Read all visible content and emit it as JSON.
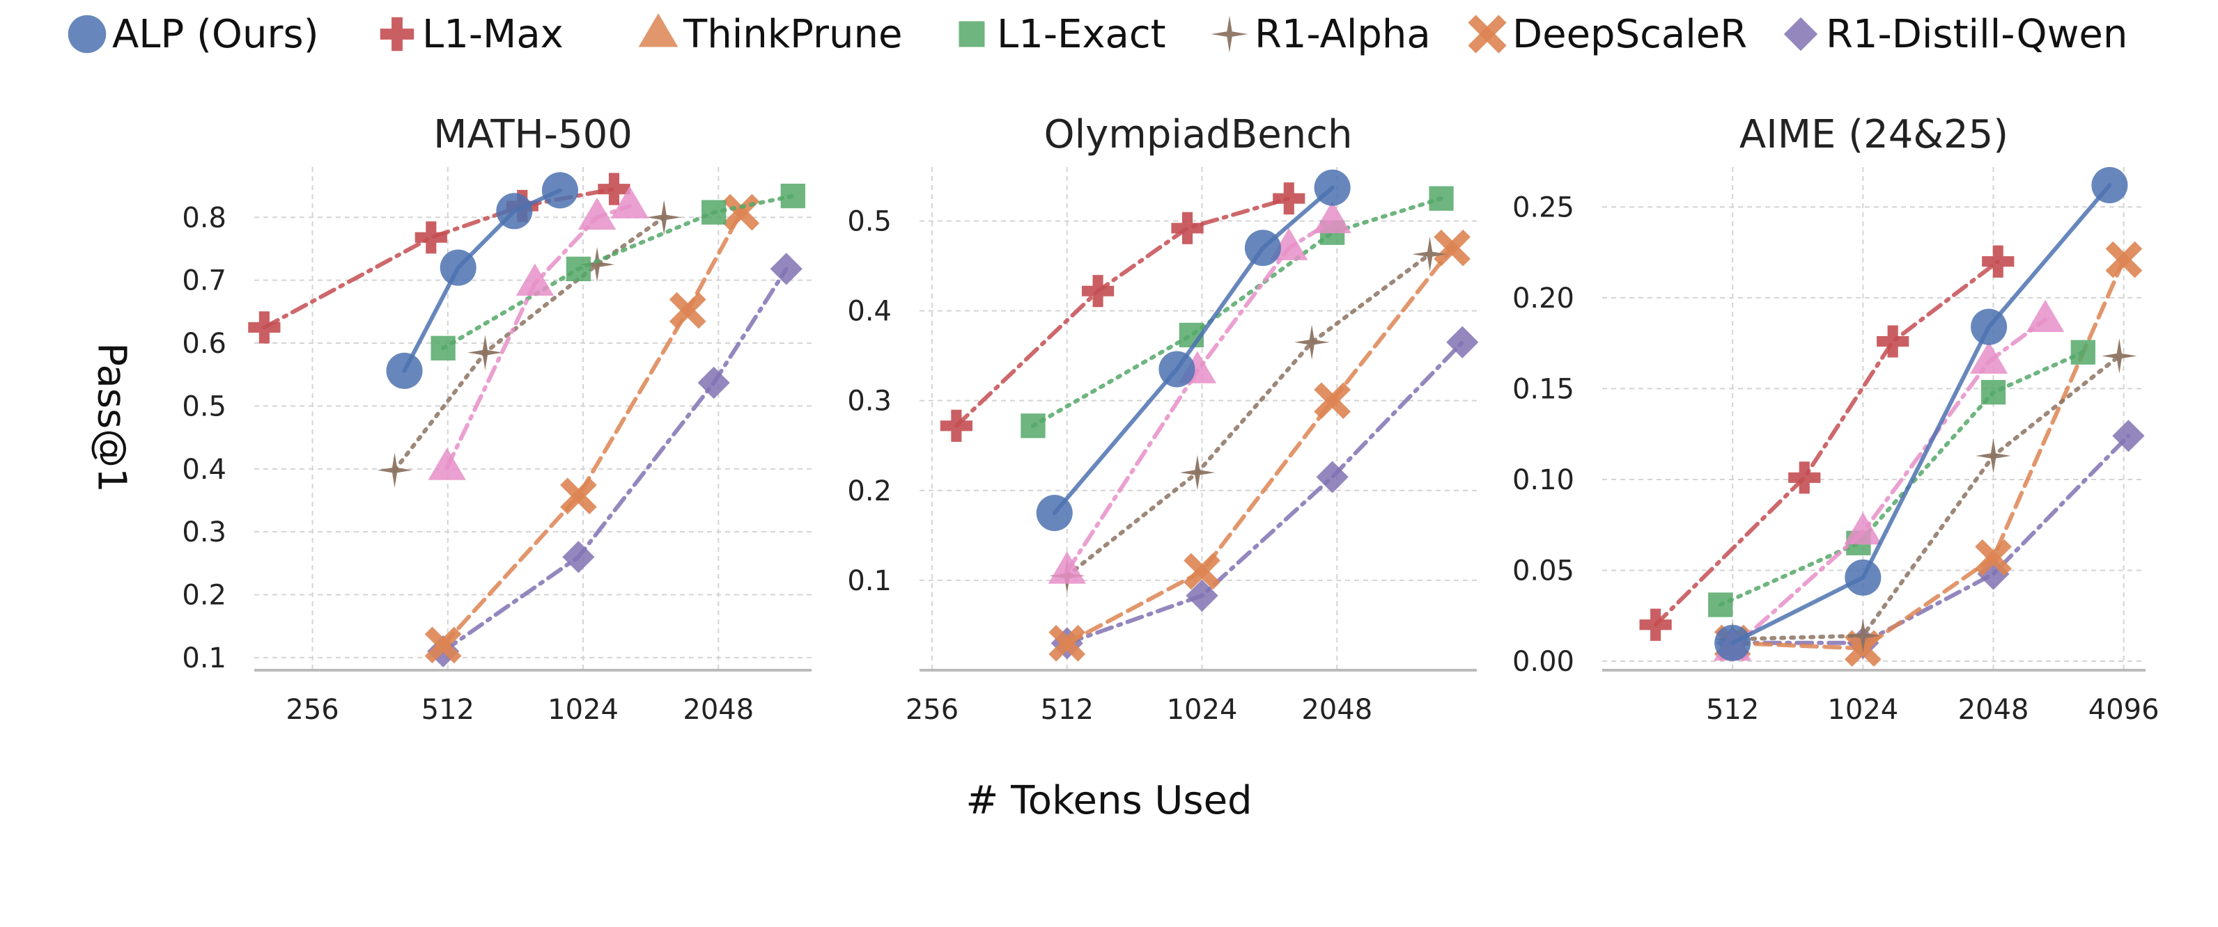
{
  "legend": [
    {
      "name": "ALP (Ours)",
      "key": "alp"
    },
    {
      "name": "L1-Max",
      "key": "l1max"
    },
    {
      "name": "ThinkPrune",
      "key": "thinkprune"
    },
    {
      "name": "L1-Exact",
      "key": "l1exact"
    },
    {
      "name": "R1-Alpha",
      "key": "r1alpha"
    },
    {
      "name": "DeepScaleR",
      "key": "deepscaler"
    },
    {
      "name": "R1-Distill-Qwen",
      "key": "r1distill"
    }
  ],
  "styles": {
    "alp": {
      "color": "#4c72b0",
      "marker": "circle",
      "dash": "solid"
    },
    "l1max": {
      "color": "#c44e52",
      "marker": "plus",
      "dash": "dashdot"
    },
    "thinkprune": {
      "color": "#dd8452",
      "marker": "triangle",
      "dash": "dashed"
    },
    "l1exact": {
      "color": "#55a868",
      "marker": "square",
      "dash": "dotted"
    },
    "r1alpha": {
      "color": "#8c7361",
      "marker": "star",
      "dash": "dotted"
    },
    "deepscaler": {
      "color": "#dd8452",
      "marker": "x",
      "dash": "dashed"
    },
    "r1distill": {
      "color": "#8172b3",
      "marker": "diamond",
      "dash": "dashdot"
    },
    "pink": {
      "color": "#e68fc8",
      "marker": "triangle",
      "dash": "dashdot"
    }
  },
  "xlabel": "# Tokens Used",
  "ylabel": "Pass@1",
  "chart_data": [
    {
      "type": "line",
      "title": "MATH-500",
      "xscale": "log2",
      "xlim": [
        190,
        3300
      ],
      "ylim": [
        0.08,
        0.88
      ],
      "xticks": [
        256,
        512,
        1024,
        2048
      ],
      "xticklabels": [
        "256",
        "512",
        "1024",
        "2048"
      ],
      "yticks": [
        0.1,
        0.2,
        0.3,
        0.4,
        0.5,
        0.6,
        0.7,
        0.8
      ],
      "yticklabels": [
        "0.1",
        "0.2",
        "0.3",
        "0.4",
        "0.5",
        "0.6",
        "0.7",
        "0.8"
      ],
      "grid": true,
      "series": [
        {
          "key": "l1max",
          "x": [
            200,
            470,
            750,
            1200
          ],
          "y": [
            0.625,
            0.768,
            0.818,
            0.845
          ]
        },
        {
          "key": "r1distill",
          "x": [
            500,
            1000,
            2000,
            2900
          ],
          "y": [
            0.11,
            0.26,
            0.537,
            0.718
          ]
        },
        {
          "key": "deepscaler",
          "x": [
            500,
            1000,
            1750,
            2300
          ],
          "y": [
            0.12,
            0.357,
            0.652,
            0.808
          ]
        },
        {
          "key": "r1alpha",
          "x": [
            390,
            620,
            1100,
            1550
          ],
          "y": [
            0.398,
            0.585,
            0.725,
            0.8
          ]
        },
        {
          "key": "l1exact",
          "x": [
            500,
            1000,
            2000,
            3000
          ],
          "y": [
            0.592,
            0.718,
            0.808,
            0.834
          ]
        },
        {
          "key": "pink",
          "x": [
            510,
            800,
            1100,
            1300
          ],
          "y": [
            0.402,
            0.695,
            0.8,
            0.818
          ]
        },
        {
          "key": "alp",
          "x": [
            410,
            540,
            720,
            910
          ],
          "y": [
            0.556,
            0.72,
            0.81,
            0.843
          ]
        }
      ]
    },
    {
      "type": "line",
      "title": "OlympiadBench",
      "xscale": "log2",
      "xlim": [
        240,
        4200
      ],
      "ylim": [
        0.0,
        0.56
      ],
      "xticks": [
        256,
        512,
        1024,
        2048
      ],
      "xticklabels": [
        "256",
        "512",
        "1024",
        "2048"
      ],
      "yticks": [
        0.1,
        0.2,
        0.3,
        0.4,
        0.5
      ],
      "yticklabels": [
        "0.1",
        "0.2",
        "0.3",
        "0.4",
        "0.5"
      ],
      "grid": true,
      "series": [
        {
          "key": "l1max",
          "x": [
            290,
            600,
            950,
            1600
          ],
          "y": [
            0.272,
            0.422,
            0.492,
            0.525
          ]
        },
        {
          "key": "r1distill",
          "x": [
            512,
            1024,
            2000,
            3900
          ],
          "y": [
            0.03,
            0.083,
            0.215,
            0.365
          ]
        },
        {
          "key": "deepscaler",
          "x": [
            512,
            1024,
            2000,
            3700
          ],
          "y": [
            0.03,
            0.11,
            0.3,
            0.47
          ]
        },
        {
          "key": "r1alpha",
          "x": [
            512,
            1000,
            1800,
            3300
          ],
          "y": [
            0.105,
            0.22,
            0.365,
            0.463
          ]
        },
        {
          "key": "l1exact",
          "x": [
            430,
            970,
            2000,
            3500
          ],
          "y": [
            0.272,
            0.373,
            0.487,
            0.525
          ]
        },
        {
          "key": "pink",
          "x": [
            512,
            1000,
            1600,
            2000
          ],
          "y": [
            0.11,
            0.333,
            0.47,
            0.5
          ]
        },
        {
          "key": "alp",
          "x": [
            480,
            900,
            1400,
            2000
          ],
          "y": [
            0.175,
            0.335,
            0.47,
            0.537
          ]
        }
      ]
    },
    {
      "type": "line",
      "title": "AIME (24&25)",
      "xscale": "log2",
      "xlim": [
        256,
        4600
      ],
      "ylim": [
        -0.005,
        0.272
      ],
      "xticks": [
        512,
        1024,
        2048,
        4096
      ],
      "xticklabels": [
        "512",
        "1024",
        "2048",
        "4096"
      ],
      "yticks": [
        0.0,
        0.05,
        0.1,
        0.15,
        0.2,
        0.25
      ],
      "yticklabels": [
        "0.00",
        "0.05",
        "0.10",
        "0.15",
        "0.20",
        "0.25"
      ],
      "grid": true,
      "series": [
        {
          "key": "l1max",
          "x": [
            340,
            750,
            1200,
            2100
          ],
          "y": [
            0.02,
            0.101,
            0.176,
            0.22
          ]
        },
        {
          "key": "r1distill",
          "x": [
            512,
            1024,
            2048,
            4200
          ],
          "y": [
            0.01,
            0.01,
            0.048,
            0.124
          ]
        },
        {
          "key": "deepscaler",
          "x": [
            512,
            1024,
            2048,
            4100
          ],
          "y": [
            0.01,
            0.007,
            0.057,
            0.221
          ]
        },
        {
          "key": "r1alpha",
          "x": [
            512,
            1024,
            2048,
            4000
          ],
          "y": [
            0.012,
            0.014,
            0.113,
            0.168
          ]
        },
        {
          "key": "l1exact",
          "x": [
            480,
            1000,
            2048,
            3300
          ],
          "y": [
            0.031,
            0.065,
            0.148,
            0.17
          ]
        },
        {
          "key": "pink",
          "x": [
            512,
            1024,
            2000,
            2700
          ],
          "y": [
            0.007,
            0.071,
            0.165,
            0.188
          ]
        },
        {
          "key": "alp",
          "x": [
            512,
            1024,
            2000,
            3800
          ],
          "y": [
            0.01,
            0.046,
            0.184,
            0.262
          ]
        }
      ]
    }
  ]
}
